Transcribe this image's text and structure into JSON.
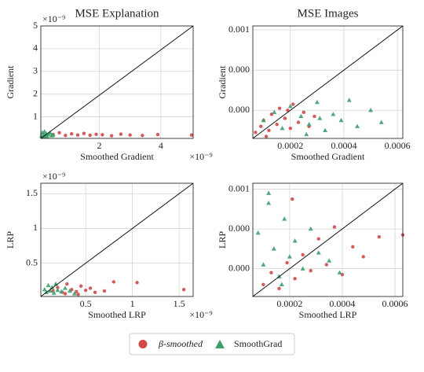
{
  "chart_data": [
    {
      "type": "scatter",
      "title": "MSE Explanation",
      "xlabel": "Smoothed Gradient",
      "ylabel": "Gradient",
      "x_offset_text": "×10⁻⁹",
      "y_offset_text": "×10⁻⁹",
      "xlim": [
        0.1,
        5.05
      ],
      "ylim": [
        0.05,
        5
      ],
      "xticks": [
        2,
        4
      ],
      "yticks": [
        1,
        2,
        3,
        4,
        5
      ],
      "grid": true,
      "series": [
        {
          "name": "β-smoothed",
          "color": "#d04848",
          "marker": "circle",
          "x": [
            0.5,
            0.7,
            0.9,
            1.1,
            1.3,
            1.5,
            1.7,
            1.9,
            2.1,
            2.4,
            2.7,
            3.0,
            3.4,
            3.9,
            5.0
          ],
          "values": [
            0.22,
            0.3,
            0.18,
            0.25,
            0.2,
            0.27,
            0.19,
            0.23,
            0.21,
            0.17,
            0.24,
            0.2,
            0.18,
            0.22,
            0.2
          ]
        },
        {
          "name": "SmoothGrad",
          "color": "#3e9e6e",
          "marker": "triangle",
          "x": [
            0.12,
            0.15,
            0.18,
            0.2,
            0.22,
            0.25,
            0.28,
            0.3,
            0.35,
            0.4,
            0.45,
            0.5
          ],
          "values": [
            0.15,
            0.3,
            0.12,
            0.2,
            0.35,
            0.18,
            0.25,
            0.14,
            0.22,
            0.3,
            0.17,
            0.2
          ]
        }
      ]
    },
    {
      "type": "scatter",
      "title": "MSE Images",
      "xlabel": "Smoothed Gradient",
      "ylabel": "Gradient",
      "xlim": [
        6e-05,
        0.00062
      ],
      "ylim": [
        6e-05,
        0.00062
      ],
      "xticks": [
        0.0002,
        0.0004,
        0.0006
      ],
      "yticks": [
        {
          "value": 0.0002,
          "label": "0.000"
        },
        {
          "value": 0.0004,
          "label": "0.000"
        },
        {
          "value": 0.0006,
          "label": "0.001"
        }
      ],
      "grid": true,
      "series": [
        {
          "name": "β-smoothed",
          "color": "#d04848",
          "marker": "circle",
          "x": [
            7e-05,
            9e-05,
            0.0001,
            0.00012,
            0.00013,
            0.00015,
            0.00016,
            0.00018,
            0.0002,
            0.00021,
            0.00023,
            0.00025,
            0.00027,
            0.00029,
            0.00011,
            0.00019
          ],
          "values": [
            9e-05,
            0.00012,
            0.00015,
            0.0001,
            0.00018,
            0.00013,
            0.00021,
            0.00016,
            0.00011,
            0.00023,
            0.00014,
            0.00019,
            0.00012,
            0.00017,
            7e-05,
            0.0002
          ]
        },
        {
          "name": "SmoothGrad",
          "color": "#3e9e6e",
          "marker": "triangle",
          "x": [
            0.0001,
            0.00014,
            0.00017,
            0.0002,
            0.00024,
            0.00027,
            0.0003,
            0.00033,
            0.00036,
            0.00039,
            0.00042,
            0.00045,
            0.0005,
            0.00054,
            0.00026,
            0.00031
          ],
          "values": [
            0.00015,
            0.00019,
            0.00011,
            0.00022,
            0.00017,
            0.00013,
            0.00024,
            0.0001,
            0.00018,
            0.00015,
            0.00025,
            0.00012,
            0.0002,
            0.00014,
            8e-05,
            0.00016
          ]
        }
      ]
    },
    {
      "type": "scatter",
      "xlabel": "Smoothed LRP",
      "ylabel": "LRP",
      "x_offset_text": "×10⁻⁹",
      "y_offset_text": "×10⁻⁹",
      "xlim": [
        0.02,
        1.65
      ],
      "ylim": [
        0.02,
        1.65
      ],
      "xticks": [
        0.5,
        1.0,
        1.5
      ],
      "yticks": [
        0.5,
        1.0,
        1.5
      ],
      "grid": true,
      "series": [
        {
          "name": "β-smoothed",
          "color": "#d04848",
          "marker": "circle",
          "x": [
            0.15,
            0.2,
            0.25,
            0.3,
            0.35,
            0.4,
            0.45,
            0.5,
            0.55,
            0.6,
            0.7,
            0.8,
            1.05,
            1.55,
            0.28,
            0.42
          ],
          "values": [
            0.1,
            0.15,
            0.08,
            0.2,
            0.12,
            0.09,
            0.17,
            0.11,
            0.14,
            0.08,
            0.1,
            0.23,
            0.22,
            0.12,
            0.06,
            0.05
          ]
        },
        {
          "name": "SmoothGrad",
          "color": "#3e9e6e",
          "marker": "triangle",
          "x": [
            0.06,
            0.08,
            0.1,
            0.12,
            0.14,
            0.16,
            0.18,
            0.2,
            0.24,
            0.28,
            0.33,
            0.38
          ],
          "values": [
            0.12,
            0.08,
            0.18,
            0.1,
            0.15,
            0.07,
            0.2,
            0.11,
            0.09,
            0.14,
            0.1,
            0.06
          ]
        }
      ]
    },
    {
      "type": "scatter",
      "xlabel": "Smoothed LRP",
      "ylabel": "LRP",
      "xlim": [
        6e-05,
        0.00063
      ],
      "ylim": [
        6e-05,
        0.00063
      ],
      "xticks": [
        0.0002,
        0.0004,
        0.0006
      ],
      "yticks": [
        {
          "value": 0.0002,
          "label": "0.000"
        },
        {
          "value": 0.0004,
          "label": "0.000"
        },
        {
          "value": 0.0006,
          "label": "0.001"
        }
      ],
      "grid": true,
      "series": [
        {
          "name": "β-smoothed",
          "color": "#d04848",
          "marker": "circle",
          "x": [
            0.0001,
            0.00013,
            0.00016,
            0.00019,
            0.00022,
            0.00025,
            0.00028,
            0.00031,
            0.00034,
            0.00037,
            0.0004,
            0.00044,
            0.00048,
            0.00054,
            0.00063,
            0.00021
          ],
          "values": [
            0.00012,
            0.00018,
            0.0001,
            0.00023,
            0.00015,
            0.00027,
            0.00019,
            0.00035,
            0.00022,
            0.00041,
            0.00017,
            0.00031,
            0.00026,
            0.00036,
            0.00037,
            0.00055
          ]
        },
        {
          "name": "SmoothGrad",
          "color": "#3e9e6e",
          "marker": "triangle",
          "x": [
            8e-05,
            0.0001,
            0.00012,
            0.00014,
            0.00016,
            0.00018,
            0.0002,
            0.00022,
            0.00025,
            0.00028,
            0.00031,
            0.00035,
            0.00039,
            0.00012,
            0.00017
          ],
          "values": [
            0.00038,
            0.00022,
            0.00053,
            0.0003,
            0.00016,
            0.00045,
            0.00026,
            0.00034,
            0.0002,
            0.0004,
            0.00028,
            0.00024,
            0.00018,
            0.00058,
            0.00012
          ]
        }
      ]
    }
  ]
}
